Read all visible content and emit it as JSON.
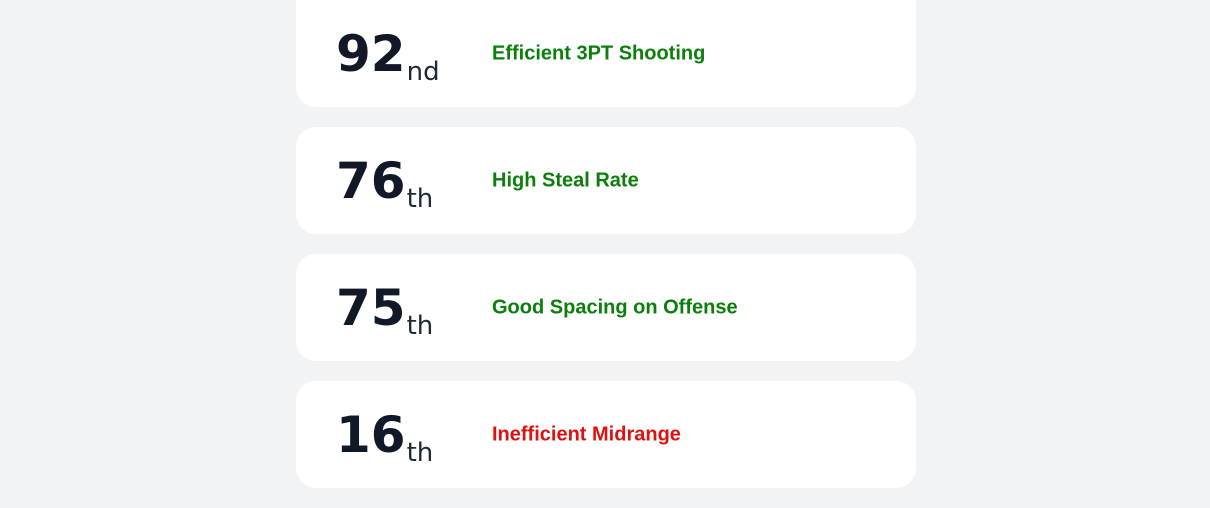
{
  "colors": {
    "background": "#f2f3f5",
    "card": "#ffffff",
    "positive": "#0a7f0a",
    "negative": "#e11010",
    "rank_text": "#111827"
  },
  "stats": [
    {
      "rank": "92",
      "suffix": "nd",
      "label": "Efficient 3PT Shooting",
      "sentiment": "positive"
    },
    {
      "rank": "76",
      "suffix": "th",
      "label": "High Steal Rate",
      "sentiment": "positive"
    },
    {
      "rank": "75",
      "suffix": "th",
      "label": "Good Spacing on Offense",
      "sentiment": "positive"
    },
    {
      "rank": "16",
      "suffix": "th",
      "label": "Inefficient Midrange",
      "sentiment": "negative"
    }
  ]
}
